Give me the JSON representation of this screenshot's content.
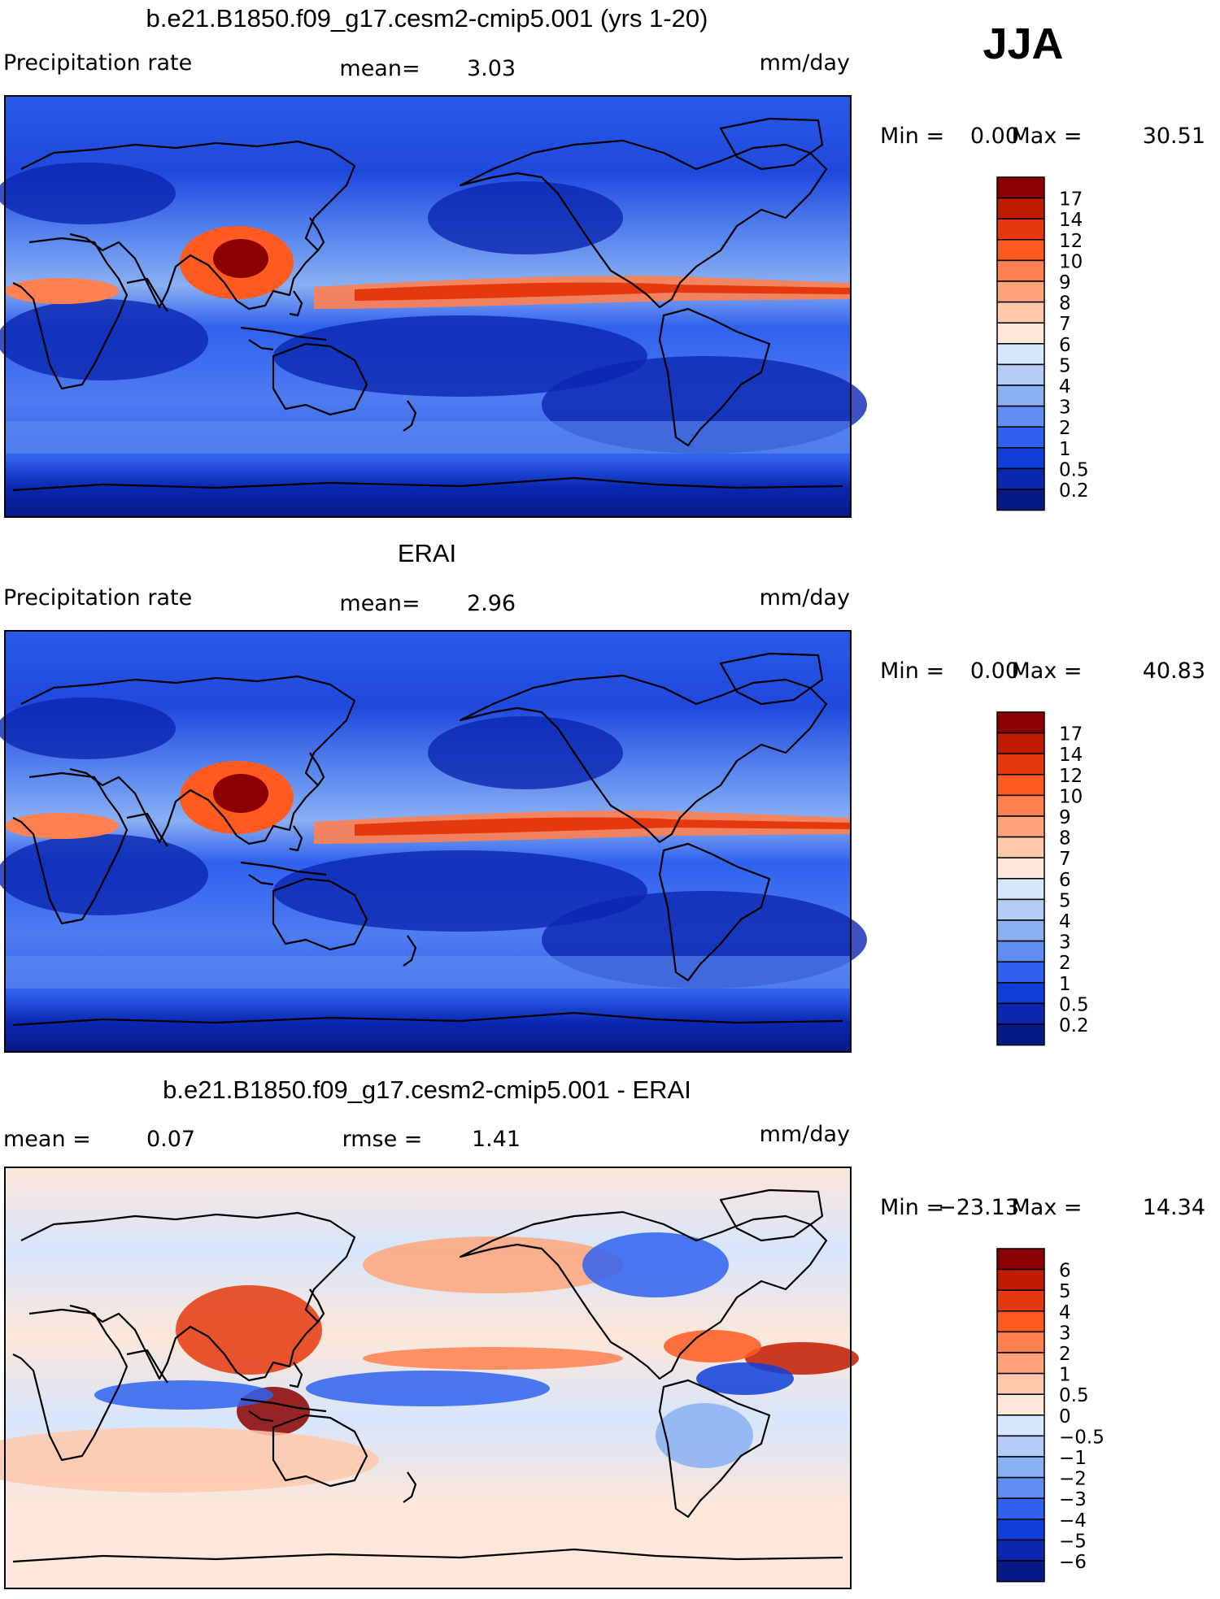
{
  "season": "JJA",
  "panels": [
    {
      "id": "model",
      "title": "b.e21.B1850.f09_g17.cesm2-cmip5.001 (yrs 1-20)",
      "left_label": "Precipitation rate",
      "mid_label": "mean=",
      "mid_value": "3.03",
      "units": "mm/day",
      "min_text": "Min =",
      "min_value": "0.00",
      "max_text": "Max =",
      "max_value": "30.51",
      "colorbar_labels": [
        "17",
        "14",
        "12",
        "10",
        "9",
        "8",
        "7",
        "6",
        "5",
        "4",
        "3",
        "2",
        "1",
        "0.5",
        "0.2"
      ],
      "colorbar_colors": [
        "#8b0000",
        "#c11b00",
        "#e5380e",
        "#ff5a1f",
        "#ff8050",
        "#ffa47a",
        "#ffc8aa",
        "#fde7d9",
        "#d6e6fb",
        "#b4cdf6",
        "#8aaff2",
        "#5f8df0",
        "#2f61ee",
        "#0f3fd8",
        "#0a27b0",
        "#061a85"
      ]
    },
    {
      "id": "obs",
      "title": "ERAI",
      "left_label": "Precipitation rate",
      "mid_label": "mean=",
      "mid_value": "2.96",
      "units": "mm/day",
      "min_text": "Min =",
      "min_value": "0.00",
      "max_text": "Max =",
      "max_value": "40.83",
      "colorbar_labels": [
        "17",
        "14",
        "12",
        "10",
        "9",
        "8",
        "7",
        "6",
        "5",
        "4",
        "3",
        "2",
        "1",
        "0.5",
        "0.2"
      ],
      "colorbar_colors": [
        "#8b0000",
        "#c11b00",
        "#e5380e",
        "#ff5a1f",
        "#ff8050",
        "#ffa47a",
        "#ffc8aa",
        "#fde7d9",
        "#d6e6fb",
        "#b4cdf6",
        "#8aaff2",
        "#5f8df0",
        "#2f61ee",
        "#0f3fd8",
        "#0a27b0",
        "#061a85"
      ]
    },
    {
      "id": "diff",
      "title": "b.e21.B1850.f09_g17.cesm2-cmip5.001 - ERAI",
      "left_label": "mean =",
      "left_value": "0.07",
      "mid_label": "rmse =",
      "mid_value": "1.41",
      "units": "mm/day",
      "min_text": "Min =",
      "min_value": "−23.13",
      "max_text": "Max =",
      "max_value": "14.34",
      "colorbar_labels": [
        "6",
        "5",
        "4",
        "3",
        "2",
        "1",
        "0.5",
        "0",
        "−0.5",
        "−1",
        "−2",
        "−3",
        "−4",
        "−5",
        "−6"
      ],
      "colorbar_colors": [
        "#8b0000",
        "#c11b00",
        "#e5380e",
        "#ff5a1f",
        "#ff8050",
        "#ffa47a",
        "#ffc8aa",
        "#fde7d9",
        "#d6e6fb",
        "#b4cdf6",
        "#8aaff2",
        "#5f8df0",
        "#2f61ee",
        "#0f3fd8",
        "#0a27b0",
        "#061a85"
      ]
    }
  ]
}
